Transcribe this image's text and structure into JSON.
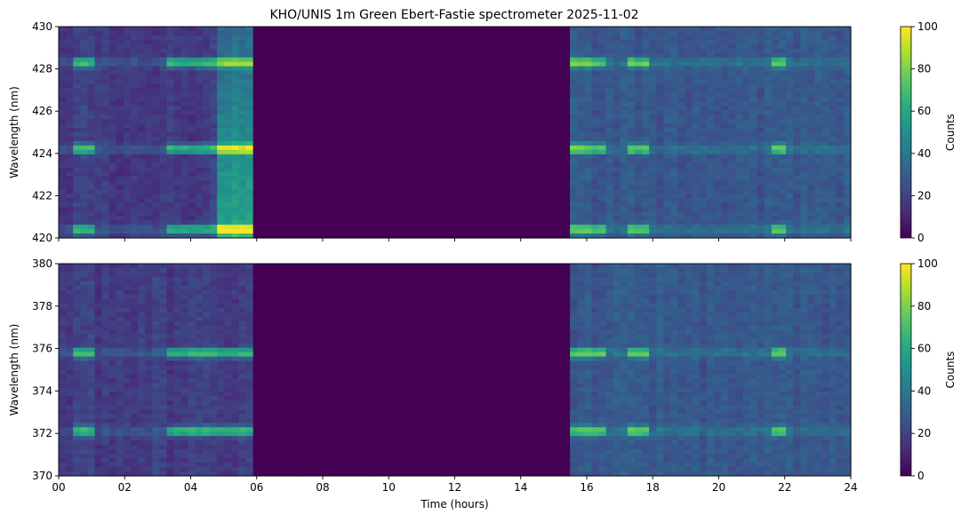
{
  "title": "KHO/UNIS 1m Green Ebert-Fastie spectrometer 2025-11-02",
  "chart_data": [
    {
      "type": "heatmap",
      "panel": "top",
      "xlabel": "",
      "ylabel": "Wavelength (nm)",
      "xlim": [
        0,
        24
      ],
      "ylim": [
        420,
        430
      ],
      "x_tick_values": [
        0,
        2,
        4,
        6,
        8,
        10,
        12,
        14,
        16,
        18,
        20,
        22,
        24
      ],
      "x_tick_labels": [],
      "y_tick_values": [
        420,
        422,
        424,
        426,
        428,
        430
      ],
      "y_tick_labels": [
        "420",
        "422",
        "424",
        "426",
        "428",
        "430"
      ],
      "colorbar": {
        "label": "Counts",
        "min": 0,
        "max": 100,
        "colormap": "viridis",
        "tick_values": [
          0,
          20,
          40,
          60,
          80,
          100
        ],
        "tick_labels": [
          "0",
          "20",
          "40",
          "60",
          "80",
          "100"
        ]
      },
      "data_gaps_hours": [
        [
          5.85,
          15.45
        ]
      ],
      "emission_lines_nm": [
        428.3,
        424.2,
        420.4
      ],
      "bright_periods_hours": [
        [
          0.5,
          1.0
        ],
        [
          3.3,
          5.85
        ],
        [
          15.5,
          16.6
        ],
        [
          17.2,
          17.8
        ],
        [
          21.5,
          22.0
        ]
      ]
    },
    {
      "type": "heatmap",
      "panel": "bottom",
      "xlabel": "Time (hours)",
      "ylabel": "Wavelength (nm)",
      "xlim": [
        0,
        24
      ],
      "ylim": [
        370,
        380
      ],
      "x_tick_values": [
        0,
        2,
        4,
        6,
        8,
        10,
        12,
        14,
        16,
        18,
        20,
        22,
        24
      ],
      "x_tick_labels": [
        "00",
        "02",
        "04",
        "06",
        "08",
        "10",
        "12",
        "14",
        "16",
        "18",
        "20",
        "22",
        "24"
      ],
      "y_tick_values": [
        370,
        372,
        374,
        376,
        378,
        380
      ],
      "y_tick_labels": [
        "370",
        "372",
        "374",
        "376",
        "378",
        "380"
      ],
      "colorbar": {
        "label": "Counts",
        "min": 0,
        "max": 100,
        "colormap": "viridis",
        "tick_values": [
          0,
          20,
          40,
          60,
          80,
          100
        ],
        "tick_labels": [
          "0",
          "20",
          "40",
          "60",
          "80",
          "100"
        ]
      },
      "data_gaps_hours": [
        [
          5.85,
          15.45
        ]
      ],
      "emission_lines_nm": [
        375.8,
        372.1
      ],
      "bright_periods_hours": [
        [
          0.5,
          1.0
        ],
        [
          3.3,
          5.85
        ],
        [
          15.5,
          16.6
        ],
        [
          17.2,
          17.8
        ],
        [
          21.5,
          22.0
        ]
      ]
    }
  ],
  "colors": {
    "gap": "#440154",
    "background_low": "#3b3f8a",
    "background_mid": "#33608c",
    "line_bright": "#fde725",
    "line_mid": "#35b779"
  }
}
